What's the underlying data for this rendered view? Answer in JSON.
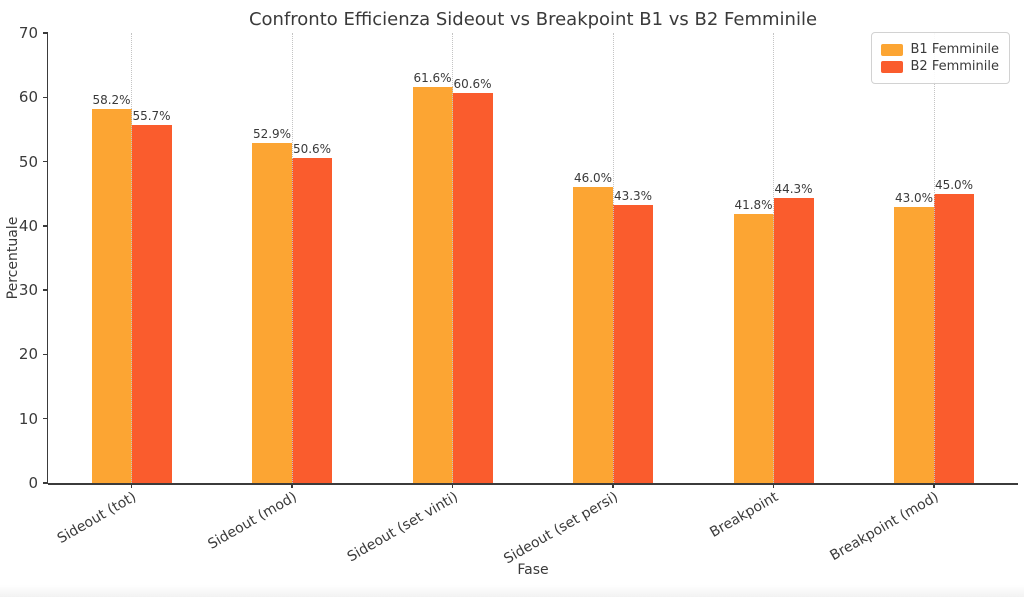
{
  "chart_data": {
    "type": "bar",
    "title": "Confronto Efficienza Sideout vs Breakpoint B1 vs B2 Femminile",
    "xlabel": "Fase",
    "ylabel": "Percentuale",
    "ylim": [
      0,
      70
    ],
    "yticks": [
      0,
      10,
      20,
      30,
      40,
      50,
      60,
      70
    ],
    "categories": [
      "Sideout (tot)",
      "Sideout (mod)",
      "Sideout (set vinti)",
      "Sideout (set persi)",
      "Breakpoint",
      "Breakpoint (mod)"
    ],
    "series": [
      {
        "name": "B1 Femminile",
        "color": "#FCA533",
        "values": [
          58.2,
          52.9,
          61.6,
          46.0,
          41.8,
          43.0
        ]
      },
      {
        "name": "B2 Femminile",
        "color": "#FA5C2D",
        "values": [
          55.7,
          50.6,
          60.6,
          43.3,
          44.3,
          45.0
        ]
      }
    ],
    "value_labels": [
      [
        "58.2%",
        "52.9%",
        "61.6%",
        "46.0%",
        "41.8%",
        "43.0%"
      ],
      [
        "55.7%",
        "50.6%",
        "60.6%",
        "43.3%",
        "44.3%",
        "45.0%"
      ]
    ],
    "legend_position": "top-right",
    "grid": "vertical-dotted-at-categories"
  },
  "colors": {
    "grid": "#C4C4C4",
    "axis": "#3B3B3B",
    "text": "#3A3A3A",
    "legend_border": "#D2D2D2",
    "background": "#FFFFFF"
  }
}
